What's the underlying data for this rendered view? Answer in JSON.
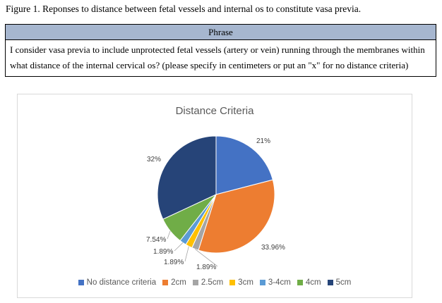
{
  "caption": "Figure 1. Reponses to distance between fetal vessels and internal os to constitute vasa previa.",
  "table": {
    "header": "Phrase",
    "text": "I consider vasa previa to include unprotected fetal vessels (artery or vein) running through the membranes within what distance of the internal cervical os? (please specify in centimeters or put an \"x\" for no distance criteria)"
  },
  "chart_data": {
    "type": "pie",
    "title": "Distance Criteria",
    "legend_position": "bottom",
    "slices": [
      {
        "name": "No distance criteria",
        "value": 21,
        "label": "21%",
        "color": "#4472c4"
      },
      {
        "name": "2cm",
        "value": 33.96,
        "label": "33.96%",
        "color": "#ed7d31"
      },
      {
        "name": "2.5cm",
        "value": 1.89,
        "label": "1.89%",
        "color": "#a5a5a5"
      },
      {
        "name": "3cm",
        "value": 1.89,
        "label": "1.89%",
        "color": "#ffc000"
      },
      {
        "name": "3-4cm",
        "value": 1.89,
        "label": "1.89%",
        "color": "#5b9bd5"
      },
      {
        "name": "4cm",
        "value": 7.54,
        "label": "7.54%",
        "color": "#70ad47"
      },
      {
        "name": "5cm",
        "value": 32,
        "label": "32%",
        "color": "#264478"
      }
    ]
  }
}
